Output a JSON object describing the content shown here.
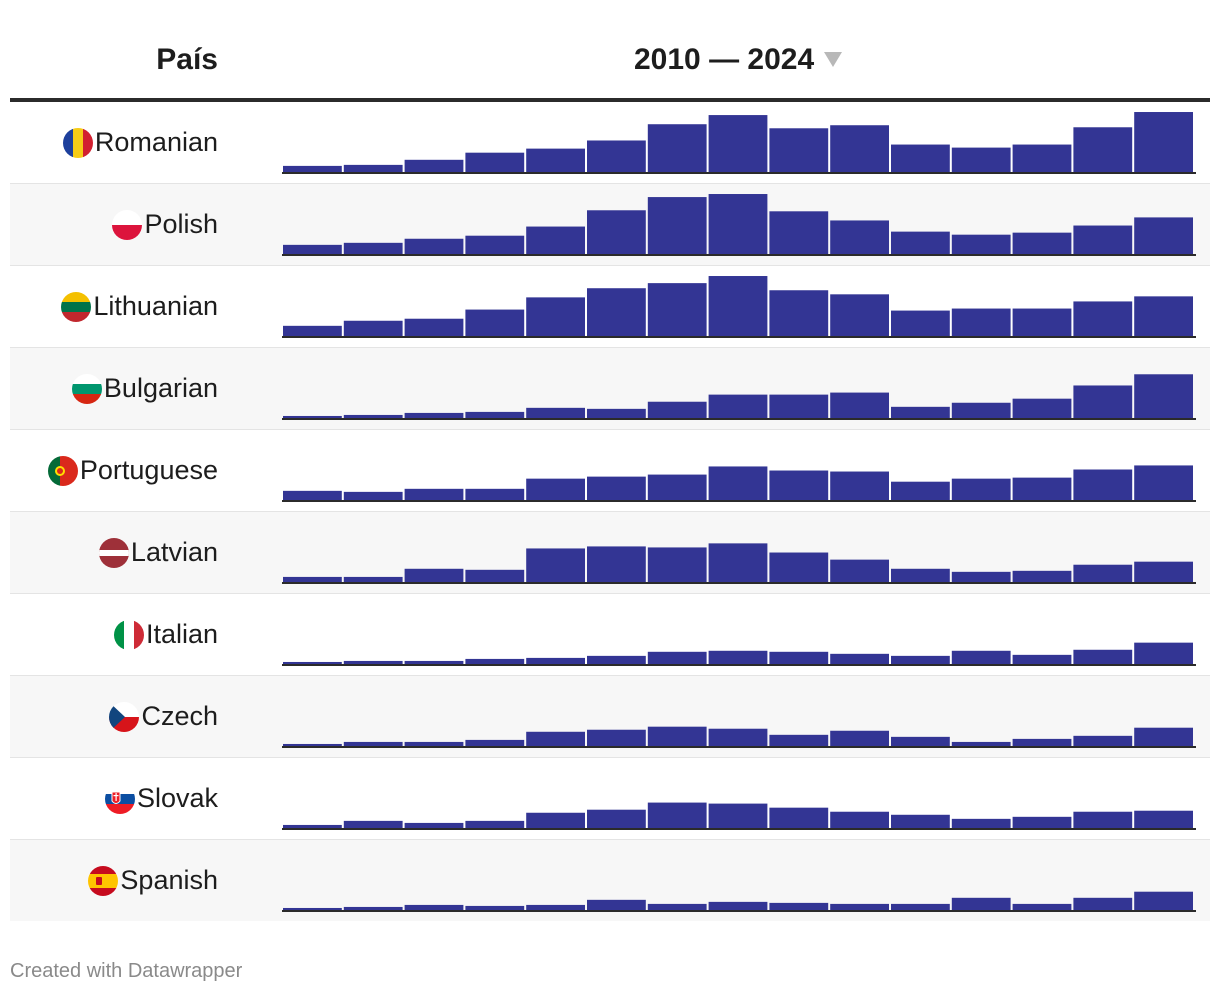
{
  "header": {
    "country_label": "País",
    "range_label": "2010 — 2024"
  },
  "colors": {
    "bar": "#333594",
    "baseline": "#2b2b2b"
  },
  "footer": {
    "credit": "Created with Datawrapper"
  },
  "chart_data": {
    "type": "bar",
    "x": [
      2010,
      2011,
      2012,
      2013,
      2014,
      2015,
      2016,
      2017,
      2018,
      2019,
      2020,
      2021,
      2022,
      2023,
      2024
    ],
    "ylim": [
      0,
      60
    ],
    "series": [
      {
        "name": "Romanian",
        "flag": "romania-flag-icon",
        "values": [
          6,
          7,
          12,
          19,
          23,
          31,
          47,
          56,
          43,
          46,
          27,
          24,
          27,
          44,
          59
        ]
      },
      {
        "name": "Polish",
        "flag": "poland-flag-icon",
        "values": [
          9,
          11,
          15,
          18,
          27,
          43,
          56,
          59,
          42,
          33,
          22,
          19,
          21,
          28,
          36
        ]
      },
      {
        "name": "Lithuanian",
        "flag": "lithuania-flag-icon",
        "values": [
          10,
          15,
          17,
          26,
          38,
          47,
          52,
          59,
          45,
          41,
          25,
          27,
          27,
          34,
          39
        ]
      },
      {
        "name": "Bulgarian",
        "flag": "bulgaria-flag-icon",
        "values": [
          2,
          3,
          5,
          6,
          10,
          9,
          16,
          23,
          23,
          25,
          11,
          15,
          19,
          32,
          43
        ]
      },
      {
        "name": "Portuguese",
        "flag": "portugal-flag-icon",
        "values": [
          9,
          8,
          11,
          11,
          21,
          23,
          25,
          33,
          29,
          28,
          18,
          21,
          22,
          30,
          34
        ]
      },
      {
        "name": "Latvian",
        "flag": "latvia-flag-icon",
        "values": [
          5,
          5,
          13,
          12,
          33,
          35,
          34,
          38,
          29,
          22,
          13,
          10,
          11,
          17,
          20
        ]
      },
      {
        "name": "Italian",
        "flag": "italy-flag-icon",
        "values": [
          2,
          3,
          3,
          5,
          6,
          8,
          12,
          13,
          12,
          10,
          8,
          13,
          9,
          14,
          21
        ]
      },
      {
        "name": "Czech",
        "flag": "czech-flag-icon",
        "values": [
          2,
          4,
          4,
          6,
          14,
          16,
          19,
          17,
          11,
          15,
          9,
          4,
          7,
          10,
          18
        ]
      },
      {
        "name": "Slovak",
        "flag": "slovakia-flag-icon",
        "values": [
          3,
          7,
          5,
          7,
          15,
          18,
          25,
          24,
          20,
          16,
          13,
          9,
          11,
          16,
          17
        ]
      },
      {
        "name": "Spanish",
        "flag": "spain-flag-icon",
        "values": [
          2,
          3,
          5,
          4,
          5,
          10,
          6,
          8,
          7,
          6,
          6,
          12,
          6,
          12,
          18
        ]
      }
    ]
  }
}
